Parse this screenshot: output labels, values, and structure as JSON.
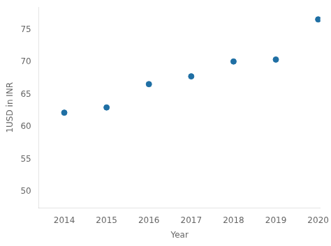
{
  "chart_data": {
    "type": "scatter",
    "x": [
      2014,
      2015,
      2016,
      2017,
      2018,
      2019,
      2020
    ],
    "values": [
      62.2,
      63.0,
      66.6,
      67.8,
      70.1,
      70.4,
      76.6
    ],
    "color": "#1f6fa4",
    "xlabel": "Year",
    "ylabel": "1USD in INR",
    "xlim": [
      2013.4,
      2020.05
    ],
    "ylim": [
      47.5,
      78.5
    ],
    "xticks": [
      2014,
      2015,
      2016,
      2017,
      2018,
      2019,
      2020
    ],
    "yticks": [
      50,
      55,
      60,
      65,
      70,
      75
    ],
    "grid": false
  }
}
